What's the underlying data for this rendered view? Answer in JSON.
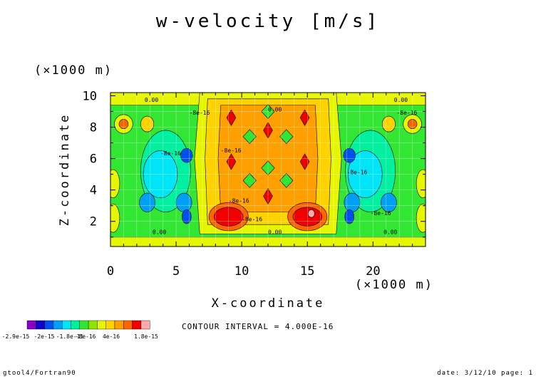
{
  "chart_data": {
    "type": "heatmap",
    "title": "w-velocity [m/s]",
    "xlabel": "X-coordinate",
    "ylabel": "Z-coordinate",
    "x_unit": "(×1000 m)",
    "y_unit": "(×1000 m)",
    "xlim": [
      0,
      24
    ],
    "ylim": [
      0.4,
      10.2
    ],
    "x_ticks": [
      "0",
      "5",
      "10",
      "15",
      "20"
    ],
    "y_ticks": [
      "2",
      "4",
      "6",
      "8",
      "10"
    ],
    "grid": true,
    "contour_interval_text": "CONTOUR INTERVAL = 4.000E-16",
    "contour_labels": [
      "0.00",
      "0.00",
      "0.00",
      "0.00",
      "0.00",
      "0.00",
      "-8e-16",
      "-8e-16",
      "-8e-16",
      "-8e-16",
      "-8e-16",
      "-8e-16",
      "-8e-16",
      "-8e-16"
    ],
    "colorbar": {
      "colors": [
        "#8a00c8",
        "#1400c8",
        "#0050f0",
        "#00a0f8",
        "#00e6f8",
        "#00f0a0",
        "#34e634",
        "#8ce600",
        "#e6f500",
        "#ffd200",
        "#ffa000",
        "#ff6400",
        "#f00000",
        "#ffaaaa"
      ],
      "labels": [
        "-2.9e-15",
        "-2e-15",
        "-1.8e-15",
        "-8e-16",
        "4e-16",
        "1.8e-15"
      ]
    }
  },
  "footer": {
    "left": "gtool4/Fortran90",
    "right": "date: 3/12/10 page: 1"
  }
}
